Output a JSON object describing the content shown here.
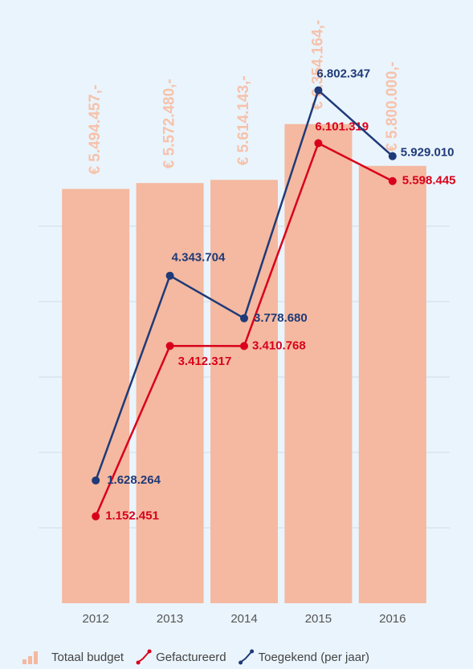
{
  "chart_data": {
    "type": "bar-line",
    "categories": [
      "2012",
      "2013",
      "2014",
      "2015",
      "2016"
    ],
    "ylim": [
      0,
      8000000
    ],
    "yticks": [
      1000000,
      2000000,
      3000000,
      4000000,
      5000000
    ],
    "grid": true,
    "series": [
      {
        "name": "Totaal budget",
        "type": "bar",
        "color": "#f4b9a0",
        "values": [
          5494457,
          5572480,
          5614143,
          6354164,
          5800000
        ],
        "value_labels": [
          "€ 5.494.457,-",
          "€ 5.572.480,-",
          "€ 5.614.143,-",
          "€ 6.354.164,-",
          "€ 5.800.000,-"
        ]
      },
      {
        "name": "Gefactureerd",
        "type": "line",
        "color": "#d9001b",
        "values": [
          1152451,
          3412317,
          3410768,
          6101319,
          5598445
        ],
        "value_labels": [
          "1.152.451",
          "3.412.317",
          "3.410.768",
          "6.101.319",
          "5.598.445"
        ]
      },
      {
        "name": "Toegekend (per jaar)",
        "type": "line",
        "color": "#1f3a78",
        "values": [
          1628264,
          4343704,
          3778680,
          6802347,
          5929010
        ],
        "value_labels": [
          "1.628.264",
          "4.343.704",
          "3.778.680",
          "6.802.347",
          "5.929.010"
        ]
      }
    ],
    "legend": "bottom"
  }
}
